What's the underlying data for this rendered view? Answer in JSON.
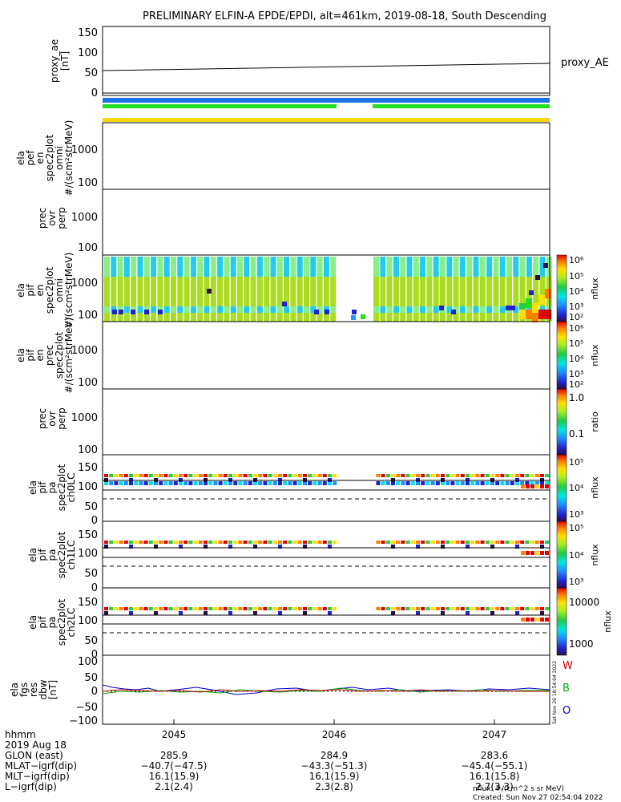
{
  "title": "PRELIMINARY ELFIN-A EPDE/EPDI, alt=461km, 2019-08-18, South Descending",
  "colors": {
    "bar_blue": "#1a73e8",
    "bar_green": "#22dd22",
    "bar_yellow": "#f5d800"
  },
  "chart_data": [
    {
      "type": "line",
      "panel": "proxy_ae",
      "ylabel_lines": [
        "proxy_ae",
        "[nT]"
      ],
      "legend": "proxy_AE",
      "ylim": [
        -15,
        160
      ],
      "yticks": [
        "150",
        "100",
        "50",
        "0"
      ],
      "x": [
        2044.6,
        2047.35
      ],
      "series": [
        {
          "values": [
            55,
            71
          ]
        }
      ]
    },
    {
      "type": "heatmap",
      "panel": "ela-perp",
      "ylabel_lines": [
        "ela",
        "pef",
        "en",
        "spec2plot",
        "omni",
        "#/(scm²strMeV)"
      ],
      "yticks": [
        "1000",
        "100"
      ],
      "empty": true
    },
    {
      "type": "heatmap",
      "panel": "prec-ovr-perp",
      "ylabel_lines": [
        "prec",
        "ovr",
        "perp"
      ],
      "yticks": [
        "1000",
        "100"
      ],
      "empty": true
    },
    {
      "type": "heatmap",
      "panel": "elapif-omni",
      "ylabel_lines": [
        "ela",
        "pif",
        "en",
        "spec2plot",
        "omni",
        "#/(scm²strMeV)"
      ],
      "yticks": [
        "1000",
        "100"
      ],
      "colorbar": {
        "label": "nflux",
        "ticks": [
          "10⁶",
          "10⁵",
          "10⁴",
          "10³",
          "10²"
        ]
      }
    },
    {
      "type": "heatmap",
      "panel": "elapif-prec",
      "ylabel_lines": [
        "ela",
        "pif",
        "en",
        "prec",
        "spec2plot",
        "#/(scm²strMeV)"
      ],
      "yticks": [
        "1000",
        "100"
      ],
      "colorbar": {
        "label": "nflux",
        "ticks": [
          "10⁶",
          "10⁵",
          "10⁴",
          "10³",
          "10²"
        ]
      },
      "empty": true
    },
    {
      "type": "heatmap",
      "panel": "prec-ovr-perp-2",
      "ylabel_lines": [
        "prec",
        "ovr",
        "perp"
      ],
      "yticks": [
        "1000",
        "100"
      ],
      "colorbar": {
        "label": "ratio",
        "ticks": [
          "1.0",
          "0.1"
        ]
      },
      "empty": true
    },
    {
      "type": "heatmap",
      "panel": "ch0LC",
      "ylabel_lines": [
        "ela",
        "pif",
        "pa",
        "spec2plot",
        "ch0LC"
      ],
      "yticks": [
        "150",
        "100",
        "50",
        "0"
      ],
      "colorbar": {
        "label": "nflux",
        "ticks": [
          "10⁵",
          "10⁴",
          "10³"
        ]
      }
    },
    {
      "type": "heatmap",
      "panel": "ch1LC",
      "ylabel_lines": [
        "ela",
        "pif",
        "pa",
        "spec2plot",
        "ch1LC"
      ],
      "yticks": [
        "150",
        "100",
        "50",
        "0"
      ],
      "colorbar": {
        "label": "nflux",
        "ticks": [
          "10⁵",
          "10⁴",
          "10³"
        ]
      }
    },
    {
      "type": "heatmap",
      "panel": "ch2LC",
      "ylabel_lines": [
        "ela",
        "pif",
        "pa",
        "spec2plot",
        "ch2LC"
      ],
      "yticks": [
        "150",
        "100",
        "50",
        "0"
      ],
      "colorbar": {
        "label": "nflux",
        "ticks": [
          "10000",
          "1000"
        ]
      }
    },
    {
      "type": "line",
      "panel": "fgs",
      "ylabel_lines": [
        "ela",
        "fgs",
        "res",
        "dbw",
        "[nT]"
      ],
      "ylim": [
        -110,
        110
      ],
      "yticks": [
        "100",
        "50",
        "0",
        "−50",
        "−100"
      ],
      "legend": [
        "W",
        "B",
        "O"
      ],
      "legend_colors": [
        "#cc0000",
        "#00aa00",
        "#0000cc"
      ]
    }
  ],
  "xaxis": {
    "tick_labels": [
      "2045",
      "2046",
      "2047"
    ],
    "rows": [
      {
        "label": "hhmm",
        "vals": [
          "",
          "",
          ""
        ]
      },
      {
        "label": "2019 Aug 18",
        "vals": [
          "",
          "",
          ""
        ]
      },
      {
        "label": "GLON (east)",
        "vals": [
          "285.9",
          "284.9",
          "283.6"
        ]
      },
      {
        "label": "MLAT−igrf(dip)",
        "vals": [
          "−40.7(−47.5)",
          "−43.3(−51.3)",
          "−45.4(−55.1)"
        ]
      },
      {
        "label": "MLT−igrf(dip)",
        "vals": [
          "16.1(15.9)",
          "16.1(15.9)",
          "16.1(15.8)"
        ]
      },
      {
        "label": "L−igrf(dip)",
        "vals": [
          "2.1(2.4)",
          "2.3(2.8)",
          "2.7(3.3)"
        ]
      }
    ]
  },
  "footer": {
    "units": "nflux: #/(cm^2 s sr MeV)",
    "created": "Created: Sun Nov 27 02:54:04 2022",
    "vertical_stamp": "Sat Nov 26 18:54:04 2022"
  }
}
